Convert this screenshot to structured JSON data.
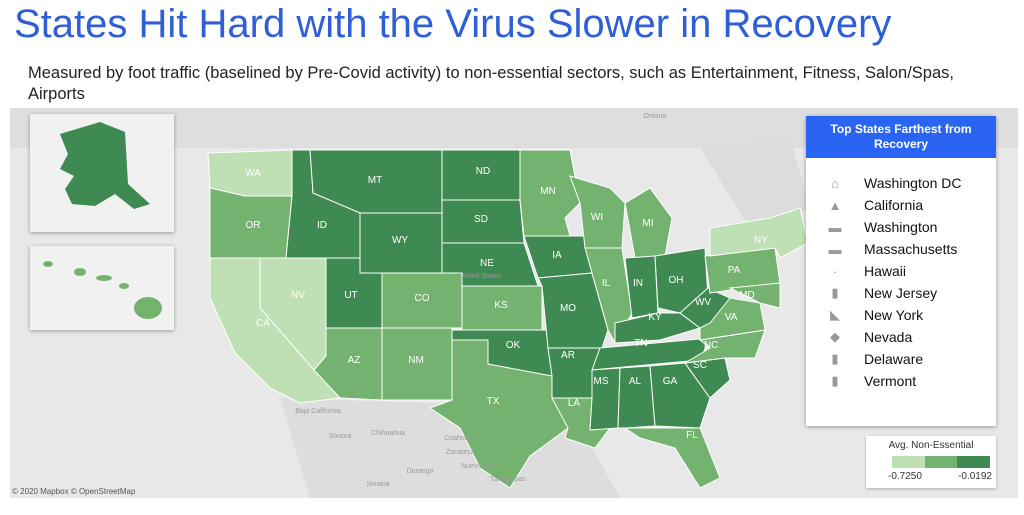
{
  "title": "States Hit Hard with the Virus Slower in Recovery",
  "subtitle": "Measured by foot traffic (baselined by Pre-Covid activity) to non-essential sectors, such as Entertainment, Fitness, Salon/Spas, Airports",
  "colors": {
    "title": "#2f5fd6",
    "panel_header": "#2a64f2",
    "light": "#bfe0b4",
    "mid": "#74b36f",
    "dark": "#3e8a52"
  },
  "map_places": [
    "Ontario",
    "Baja California",
    "Chihuahua",
    "Coahuila",
    "Zacatecas",
    "Nuevo León",
    "Tamaulipas",
    "Durango",
    "Sonora",
    "Sinaloa",
    "United States"
  ],
  "states": [
    {
      "abbr": "WA",
      "level": "light"
    },
    {
      "abbr": "OR",
      "level": "mid"
    },
    {
      "abbr": "CA",
      "level": "light"
    },
    {
      "abbr": "NV",
      "level": "light"
    },
    {
      "abbr": "ID",
      "level": "dark"
    },
    {
      "abbr": "MT",
      "level": "dark"
    },
    {
      "abbr": "WY",
      "level": "dark"
    },
    {
      "abbr": "UT",
      "level": "dark"
    },
    {
      "abbr": "CO",
      "level": "mid"
    },
    {
      "abbr": "AZ",
      "level": "mid"
    },
    {
      "abbr": "NM",
      "level": "mid"
    },
    {
      "abbr": "ND",
      "level": "dark"
    },
    {
      "abbr": "SD",
      "level": "dark"
    },
    {
      "abbr": "NE",
      "level": "dark"
    },
    {
      "abbr": "KS",
      "level": "mid"
    },
    {
      "abbr": "OK",
      "level": "dark"
    },
    {
      "abbr": "TX",
      "level": "mid"
    },
    {
      "abbr": "MN",
      "level": "mid"
    },
    {
      "abbr": "IA",
      "level": "dark"
    },
    {
      "abbr": "MO",
      "level": "dark"
    },
    {
      "abbr": "AR",
      "level": "dark"
    },
    {
      "abbr": "LA",
      "level": "mid"
    },
    {
      "abbr": "WI",
      "level": "mid"
    },
    {
      "abbr": "IL",
      "level": "mid"
    },
    {
      "abbr": "MI",
      "level": "mid"
    },
    {
      "abbr": "IN",
      "level": "dark"
    },
    {
      "abbr": "OH",
      "level": "dark"
    },
    {
      "abbr": "KY",
      "level": "dark"
    },
    {
      "abbr": "TN",
      "level": "dark"
    },
    {
      "abbr": "MS",
      "level": "dark"
    },
    {
      "abbr": "AL",
      "level": "dark"
    },
    {
      "abbr": "GA",
      "level": "dark"
    },
    {
      "abbr": "FL",
      "level": "mid"
    },
    {
      "abbr": "SC",
      "level": "dark"
    },
    {
      "abbr": "NC",
      "level": "mid"
    },
    {
      "abbr": "VA",
      "level": "mid"
    },
    {
      "abbr": "WV",
      "level": "dark"
    },
    {
      "abbr": "PA",
      "level": "mid"
    },
    {
      "abbr": "NY",
      "level": "light"
    },
    {
      "abbr": "MD",
      "level": "mid"
    }
  ],
  "panel": {
    "header": "Top States Farthest from Recovery",
    "items": [
      {
        "name": "Washington DC",
        "icon": "capitol-icon"
      },
      {
        "name": "California",
        "icon": "state-shape-icon"
      },
      {
        "name": "Washington",
        "icon": "state-shape-icon"
      },
      {
        "name": "Massachusetts",
        "icon": "state-shape-icon"
      },
      {
        "name": "Hawaii",
        "icon": "state-shape-icon"
      },
      {
        "name": "New Jersey",
        "icon": "state-shape-icon"
      },
      {
        "name": "New York",
        "icon": "state-shape-icon"
      },
      {
        "name": "Nevada",
        "icon": "state-shape-icon"
      },
      {
        "name": "Delaware",
        "icon": "state-shape-icon"
      },
      {
        "name": "Vermont",
        "icon": "state-shape-icon"
      }
    ]
  },
  "color_scale": {
    "title": "Avg. Non-Essential",
    "min": "-0.7250",
    "max": "-0.0192"
  },
  "copyright": "© 2020 Mapbox © OpenStreetMap"
}
